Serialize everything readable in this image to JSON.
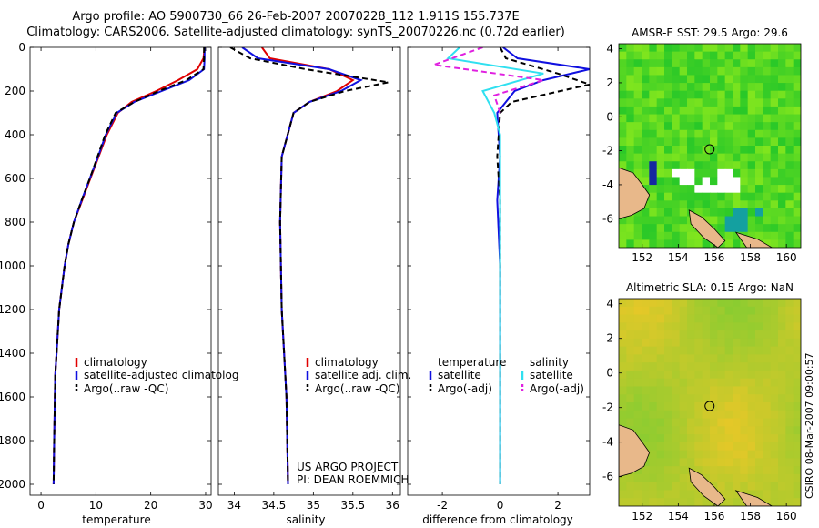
{
  "header": {
    "title_line1": "Argo profile: AO 5900730_66 26-Feb-2007 20070228_112 1.911S 155.737E",
    "title_line2": "Climatology: CARS2006. Satellite-adjusted climatology: synTS_20070226.nc (0.72d earlier)"
  },
  "credits": {
    "line1": "US ARGO PROJECT",
    "line2": "PI: DEAN ROEMMICH",
    "side_label": "CSIRO 08-Mar-2007 09:00:57"
  },
  "colors": {
    "climatology": "#e00000",
    "satellite": "#1010e0",
    "argo": "#000000",
    "sal_satellite": "#30e0f0",
    "sal_argo": "#e020e0",
    "land": "#e8b88a"
  },
  "chart_data": [
    {
      "type": "line",
      "id": "temperature",
      "xlabel": "temperature",
      "ylabel": "",
      "xlim": [
        -2,
        31
      ],
      "ylim": [
        2050,
        0
      ],
      "xticks": [
        "0",
        "10",
        "20",
        "30"
      ],
      "yticks": [
        "0",
        "200",
        "400",
        "600",
        "800",
        "1000",
        "1200",
        "1400",
        "1600",
        "1800",
        "2000"
      ],
      "legend": [
        "climatology",
        "satellite-adjusted climatolog",
        "Argo(..raw -QC)"
      ],
      "legend_position": "lower-right",
      "series": [
        {
          "name": "climatology",
          "x": [
            29.8,
            29.6,
            28.5,
            25.0,
            21.0,
            16.5,
            14.0,
            12.0,
            10.5,
            9.0,
            7.5,
            6.0,
            5.0,
            4.3,
            3.3,
            2.6,
            2.4,
            2.3
          ],
          "y": [
            0,
            50,
            100,
            150,
            200,
            250,
            300,
            400,
            500,
            600,
            700,
            800,
            900,
            1000,
            1200,
            1500,
            1800,
            2000
          ]
        },
        {
          "name": "satellite-adjusted climatolog",
          "x": [
            29.8,
            29.8,
            29.7,
            27.0,
            22.0,
            17.0,
            13.8,
            11.8,
            10.4,
            8.9,
            7.4,
            6.0,
            5.0,
            4.3,
            3.3,
            2.6,
            2.4,
            2.3
          ],
          "y": [
            0,
            50,
            100,
            150,
            200,
            250,
            300,
            400,
            500,
            600,
            700,
            800,
            900,
            1000,
            1200,
            1500,
            1800,
            2000
          ]
        },
        {
          "name": "Argo(..raw -QC)",
          "x": [
            29.7,
            29.7,
            29.6,
            26.5,
            21.5,
            17.0,
            13.6,
            11.7,
            10.3,
            8.9,
            7.4,
            6.0,
            5.0,
            4.3,
            3.3,
            2.6,
            2.4,
            2.3
          ],
          "y": [
            0,
            50,
            100,
            150,
            200,
            250,
            300,
            400,
            500,
            600,
            700,
            800,
            900,
            1000,
            1200,
            1500,
            1800,
            2000
          ]
        }
      ]
    },
    {
      "type": "line",
      "id": "salinity",
      "xlabel": "salinity",
      "ylabel": "",
      "xlim": [
        33.8,
        36.1
      ],
      "ylim": [
        2050,
        0
      ],
      "xticks": [
        "34",
        "34.5",
        "35",
        "35.5",
        "36"
      ],
      "legend": [
        "climatology",
        "satellite adj. clim.",
        "Argo(..raw -QC)"
      ],
      "legend_position": "lower-right",
      "series": [
        {
          "name": "climatology",
          "x": [
            34.35,
            34.45,
            35.2,
            35.5,
            35.3,
            34.95,
            34.75,
            34.6,
            34.58,
            34.6,
            34.66,
            34.68
          ],
          "y": [
            0,
            50,
            100,
            150,
            200,
            250,
            300,
            500,
            800,
            1200,
            1600,
            2000
          ]
        },
        {
          "name": "satellite adj. clim.",
          "x": [
            34.1,
            34.3,
            35.2,
            35.6,
            35.35,
            34.95,
            34.75,
            34.6,
            34.58,
            34.6,
            34.66,
            34.68
          ],
          "y": [
            0,
            50,
            100,
            150,
            200,
            250,
            300,
            500,
            800,
            1200,
            1600,
            2000
          ]
        },
        {
          "name": "Argo(..raw -QC)",
          "x": [
            33.95,
            34.2,
            34.9,
            35.95,
            35.4,
            34.95,
            34.75,
            34.6,
            34.58,
            34.6,
            34.66,
            34.68
          ],
          "y": [
            0,
            50,
            100,
            160,
            200,
            250,
            300,
            500,
            800,
            1200,
            1600,
            2000
          ]
        }
      ]
    },
    {
      "type": "line",
      "id": "difference",
      "xlabel": "difference from climatology",
      "ylabel": "",
      "xlim": [
        -3.2,
        3.1
      ],
      "ylim": [
        2050,
        0
      ],
      "xticks": [
        "-2",
        "0",
        "2"
      ],
      "legend": [
        "temperature",
        "satellite",
        "Argo(-adj)",
        "salinity",
        "satellite",
        "Argo(-adj)"
      ],
      "legend_position": "lower-right",
      "series": [
        {
          "name": "satellite",
          "x": [
            0.1,
            0.6,
            3.1,
            1.5,
            0.5,
            0.2,
            -0.1,
            0.0,
            -0.1,
            0.0,
            0.0,
            0.0
          ],
          "y": [
            0,
            50,
            100,
            150,
            200,
            250,
            300,
            500,
            700,
            1000,
            1500,
            2000
          ]
        },
        {
          "name": "Argo(-adj)",
          "x": [
            0.0,
            0.2,
            2.0,
            3.1,
            0.4,
            0.0,
            -0.1,
            0.0,
            0.0,
            0.0
          ],
          "y": [
            0,
            50,
            120,
            170,
            250,
            300,
            500,
            700,
            1000,
            2000
          ]
        },
        {
          "name": "satellite",
          "x": [
            -1.4,
            -1.8,
            1.5,
            -0.6,
            -0.2,
            0.0,
            0.0,
            0.0,
            0.0
          ],
          "y": [
            0,
            50,
            120,
            200,
            300,
            400,
            600,
            1000,
            2000
          ]
        },
        {
          "name": "Argo(-adj)",
          "x": [
            -0.6,
            -2.3,
            1.5,
            -0.2,
            0.0
          ],
          "y": [
            0,
            80,
            150,
            220,
            300
          ]
        }
      ]
    },
    {
      "type": "heatmap",
      "id": "sst-map",
      "title": "AMSR-E SST: 29.5 Argo: 29.6",
      "xlim": [
        150.7,
        160.8
      ],
      "ylim": [
        -7.7,
        4.3
      ],
      "xticks": [
        "152",
        "154",
        "156",
        "158",
        "160"
      ],
      "yticks": [
        "4",
        "2",
        "0",
        "-2",
        "-4",
        "-6"
      ],
      "marker": {
        "lon": 155.737,
        "lat": -1.911
      }
    },
    {
      "type": "heatmap",
      "id": "sla-map",
      "title": "Altimetric SLA: 0.15 Argo: NaN",
      "xlim": [
        150.7,
        160.8
      ],
      "ylim": [
        -7.7,
        4.3
      ],
      "xticks": [
        "152",
        "154",
        "156",
        "158",
        "160"
      ],
      "yticks": [
        "4",
        "2",
        "0",
        "-2",
        "-4",
        "-6"
      ],
      "marker": {
        "lon": 155.737,
        "lat": -1.911
      }
    }
  ]
}
